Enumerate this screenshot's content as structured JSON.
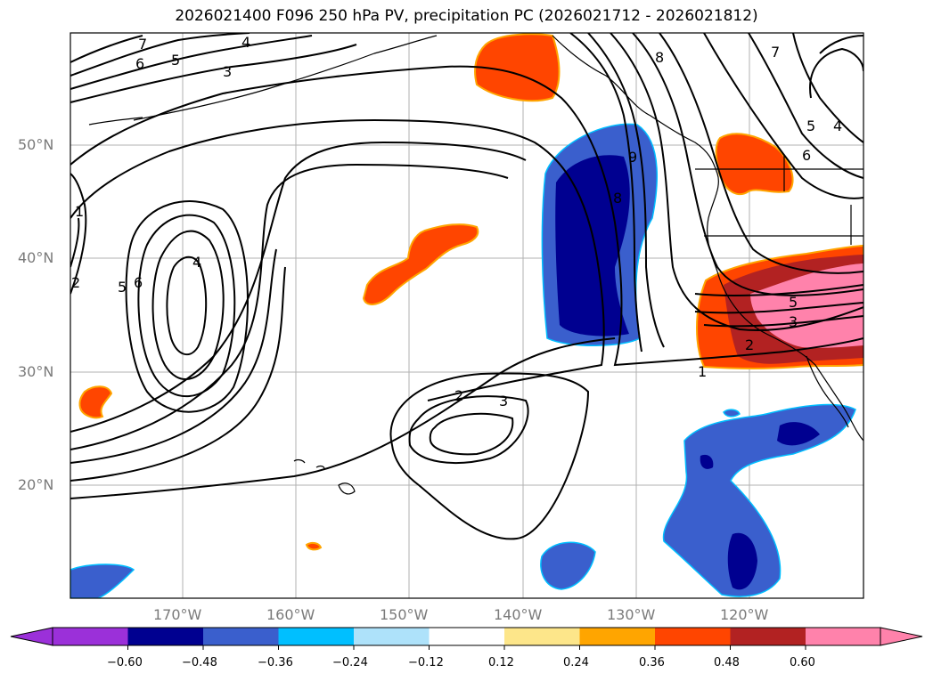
{
  "title": "2026021400 F096 250 hPa PV, precipitation PC (2026021712 - 2026021812)",
  "lat_labels": [
    "50°N",
    "40°N",
    "30°N",
    "20°N"
  ],
  "lon_labels": [
    "170°W",
    "160°W",
    "150°W",
    "140°W",
    "130°W",
    "120°W"
  ],
  "colorbar": {
    "ticks": [
      "−0.60",
      "−0.48",
      "−0.36",
      "−0.24",
      "−0.12",
      "0.12",
      "0.24",
      "0.36",
      "0.48",
      "0.60"
    ],
    "colors": [
      "#9b30d9",
      "#000090",
      "#3a5fcd",
      "#00bfff",
      "#aee2fa",
      "#ffffff",
      "#fde68a",
      "#ffa500",
      "#ff4500",
      "#b22222",
      "#ff82ab"
    ]
  },
  "contour_labels": [
    "7",
    "6",
    "5",
    "4",
    "3",
    "1",
    "2",
    "5",
    "6",
    "4",
    "2",
    "3",
    "9",
    "8",
    "8",
    "7",
    "5",
    "4",
    "6",
    "5",
    "3",
    "2",
    "1"
  ]
}
